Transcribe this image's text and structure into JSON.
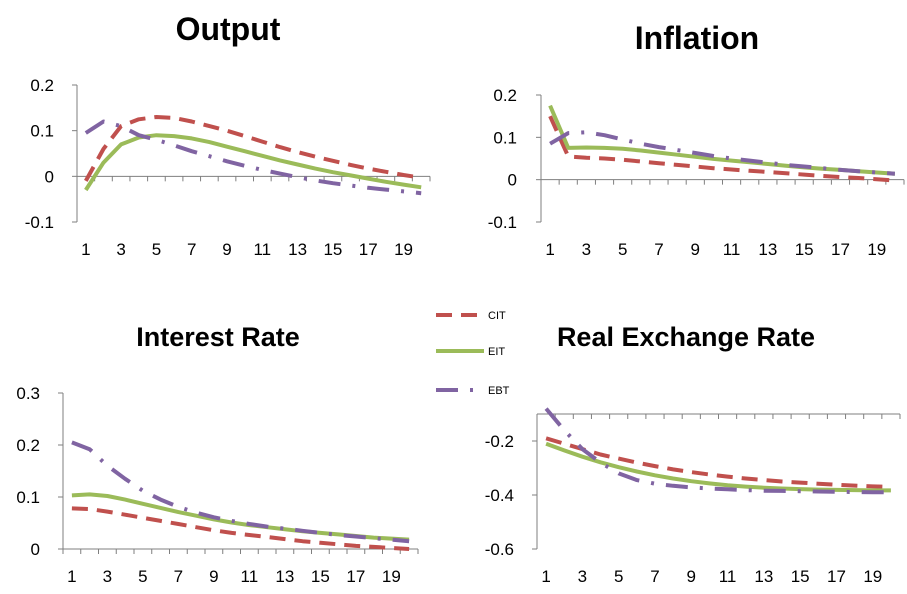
{
  "figure": {
    "legend": [
      {
        "name": "CIT",
        "color": "#C0504D",
        "dash": "dash"
      },
      {
        "name": "EIT",
        "color": "#9BBB59",
        "dash": "solid"
      },
      {
        "name": "EBT",
        "color": "#8064A2",
        "dash": "dashdot"
      }
    ]
  },
  "chart_data": [
    {
      "type": "line",
      "title": "Output",
      "x": [
        1,
        2,
        3,
        4,
        5,
        6,
        7,
        8,
        9,
        10,
        11,
        12,
        13,
        14,
        15,
        16,
        17,
        18,
        19,
        20
      ],
      "xticks": [
        "1",
        "3",
        "5",
        "7",
        "9",
        "11",
        "13",
        "15",
        "17",
        "19"
      ],
      "yticks": [
        "0.2",
        "0.1",
        "0",
        "-0.1"
      ],
      "ylim": [
        -0.1,
        0.2
      ],
      "series": [
        {
          "name": "CIT",
          "values": [
            -0.01,
            0.06,
            0.11,
            0.125,
            0.13,
            0.128,
            0.12,
            0.11,
            0.1,
            0.088,
            0.076,
            0.064,
            0.053,
            0.043,
            0.034,
            0.025,
            0.017,
            0.01,
            0.003,
            -0.003
          ]
        },
        {
          "name": "EIT",
          "values": [
            -0.03,
            0.03,
            0.07,
            0.085,
            0.09,
            0.088,
            0.083,
            0.075,
            0.065,
            0.055,
            0.045,
            0.035,
            0.026,
            0.017,
            0.009,
            0.002,
            -0.005,
            -0.012,
            -0.018,
            -0.024
          ]
        },
        {
          "name": "EBT",
          "values": [
            0.095,
            0.12,
            0.11,
            0.09,
            0.08,
            0.068,
            0.055,
            0.044,
            0.033,
            0.023,
            0.014,
            0.006,
            -0.002,
            -0.009,
            -0.015,
            -0.02,
            -0.025,
            -0.029,
            -0.033,
            -0.037
          ]
        }
      ]
    },
    {
      "type": "line",
      "title": "Inflation",
      "x": [
        1,
        2,
        3,
        4,
        5,
        6,
        7,
        8,
        9,
        10,
        11,
        12,
        13,
        14,
        15,
        16,
        17,
        18,
        19,
        20
      ],
      "xticks": [
        "1",
        "3",
        "5",
        "7",
        "9",
        "11",
        "13",
        "15",
        "17",
        "19"
      ],
      "yticks": [
        "0.2",
        "0.1",
        "0",
        "-0.1"
      ],
      "ylim": [
        -0.1,
        0.2
      ],
      "series": [
        {
          "name": "CIT",
          "values": [
            0.15,
            0.055,
            0.052,
            0.05,
            0.047,
            0.043,
            0.039,
            0.035,
            0.031,
            0.027,
            0.024,
            0.021,
            0.018,
            0.015,
            0.012,
            0.009,
            0.006,
            0.004,
            0.001,
            -0.002
          ]
        },
        {
          "name": "EIT",
          "values": [
            0.175,
            0.075,
            0.076,
            0.075,
            0.073,
            0.069,
            0.064,
            0.059,
            0.054,
            0.049,
            0.045,
            0.041,
            0.037,
            0.033,
            0.029,
            0.026,
            0.023,
            0.02,
            0.017,
            0.014
          ]
        },
        {
          "name": "EBT",
          "values": [
            0.085,
            0.11,
            0.112,
            0.105,
            0.095,
            0.085,
            0.077,
            0.07,
            0.063,
            0.056,
            0.05,
            0.045,
            0.04,
            0.035,
            0.031,
            0.027,
            0.023,
            0.02,
            0.017,
            0.014
          ]
        }
      ]
    },
    {
      "type": "line",
      "title": "Interest Rate",
      "x": [
        1,
        2,
        3,
        4,
        5,
        6,
        7,
        8,
        9,
        10,
        11,
        12,
        13,
        14,
        15,
        16,
        17,
        18,
        19,
        20
      ],
      "xticks": [
        "1",
        "3",
        "5",
        "7",
        "9",
        "11",
        "13",
        "15",
        "17",
        "19"
      ],
      "yticks": [
        "0.3",
        "0.2",
        "0.1",
        "0"
      ],
      "ylim": [
        0,
        0.3
      ],
      "series": [
        {
          "name": "CIT",
          "values": [
            0.078,
            0.077,
            0.072,
            0.066,
            0.06,
            0.054,
            0.048,
            0.042,
            0.036,
            0.031,
            0.027,
            0.023,
            0.019,
            0.015,
            0.012,
            0.009,
            0.006,
            0.004,
            0.002,
            0.0
          ]
        },
        {
          "name": "EIT",
          "values": [
            0.103,
            0.105,
            0.102,
            0.095,
            0.087,
            0.079,
            0.071,
            0.064,
            0.057,
            0.051,
            0.046,
            0.042,
            0.038,
            0.034,
            0.031,
            0.028,
            0.025,
            0.022,
            0.02,
            0.018
          ]
        },
        {
          "name": "EBT",
          "values": [
            0.205,
            0.192,
            0.16,
            0.135,
            0.112,
            0.095,
            0.081,
            0.07,
            0.061,
            0.054,
            0.048,
            0.043,
            0.039,
            0.035,
            0.031,
            0.027,
            0.024,
            0.021,
            0.018,
            0.015
          ]
        }
      ]
    },
    {
      "type": "line",
      "title": "Real Exchange Rate",
      "x": [
        1,
        2,
        3,
        4,
        5,
        6,
        7,
        8,
        9,
        10,
        11,
        12,
        13,
        14,
        15,
        16,
        17,
        18,
        19,
        20
      ],
      "xticks": [
        "1",
        "3",
        "5",
        "7",
        "9",
        "11",
        "13",
        "15",
        "17",
        "19"
      ],
      "yticks": [
        "-0.2",
        "-0.4",
        "-0.6"
      ],
      "ylim": [
        -0.6,
        -0.1
      ],
      "series": [
        {
          "name": "CIT",
          "values": [
            -0.19,
            -0.21,
            -0.23,
            -0.25,
            -0.265,
            -0.28,
            -0.293,
            -0.305,
            -0.315,
            -0.324,
            -0.332,
            -0.339,
            -0.345,
            -0.35,
            -0.354,
            -0.358,
            -0.362,
            -0.365,
            -0.368,
            -0.37
          ]
        },
        {
          "name": "EIT",
          "values": [
            -0.21,
            -0.235,
            -0.258,
            -0.279,
            -0.297,
            -0.313,
            -0.327,
            -0.339,
            -0.349,
            -0.357,
            -0.364,
            -0.369,
            -0.373,
            -0.376,
            -0.378,
            -0.38,
            -0.381,
            -0.382,
            -0.383,
            -0.383
          ]
        },
        {
          "name": "EBT",
          "values": [
            -0.08,
            -0.16,
            -0.23,
            -0.28,
            -0.32,
            -0.345,
            -0.358,
            -0.366,
            -0.372,
            -0.376,
            -0.379,
            -0.382,
            -0.384,
            -0.385,
            -0.386,
            -0.387,
            -0.388,
            -0.389,
            -0.39,
            -0.39
          ]
        }
      ]
    }
  ]
}
